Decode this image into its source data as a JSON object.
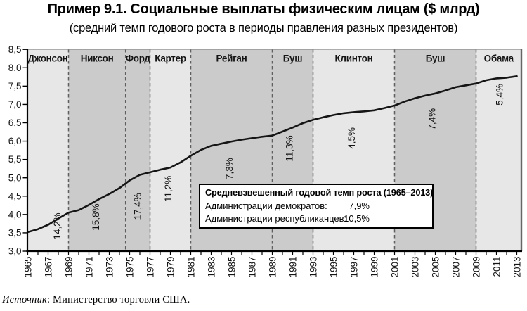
{
  "title": "Пример 9.1. Социальные выплаты физическим лицам ($ млрд)",
  "subtitle": "(средний темп годового роста в периоды правления разных президентов)",
  "source": {
    "label": "Источник",
    "text": ": Министерство торговли США."
  },
  "info_box": {
    "title": "Средневзвешенный годовой темп роста (1965–2013)",
    "rows": [
      {
        "label": "Администрации демократов:",
        "value": "7,9%"
      },
      {
        "label": "Администрации республиканцев:",
        "value": "10,5%"
      }
    ]
  },
  "chart_data": {
    "type": "line",
    "title": "Социальные выплаты физическим лицам ($ млрд)",
    "xlabel": "",
    "ylabel": "",
    "ylim": [
      3.0,
      8.5
    ],
    "ytick_step": 0.5,
    "yticks": [
      3.0,
      3.5,
      4.0,
      4.5,
      5.0,
      5.5,
      6.0,
      6.5,
      7.0,
      7.5,
      8.0,
      8.5
    ],
    "xticks_labeled": [
      1965,
      1967,
      1969,
      1971,
      1973,
      1975,
      1977,
      1979,
      1981,
      1983,
      1985,
      1987,
      1989,
      1991,
      1993,
      1995,
      1997,
      1999,
      2001,
      2003,
      2005,
      2007,
      2009,
      2011,
      2013
    ],
    "grid": false,
    "legend_position": "none",
    "x": [
      1965,
      1966,
      1967,
      1968,
      1969,
      1970,
      1971,
      1972,
      1973,
      1974,
      1975,
      1976,
      1977,
      1978,
      1979,
      1980,
      1981,
      1982,
      1983,
      1984,
      1985,
      1986,
      1987,
      1988,
      1989,
      1990,
      1991,
      1992,
      1993,
      1994,
      1995,
      1996,
      1997,
      1998,
      1999,
      2000,
      2001,
      2002,
      2003,
      2004,
      2005,
      2006,
      2007,
      2008,
      2009,
      2010,
      2011,
      2012,
      2013
    ],
    "values": [
      3.52,
      3.6,
      3.72,
      3.89,
      4.05,
      4.12,
      4.26,
      4.42,
      4.56,
      4.72,
      4.93,
      5.08,
      5.15,
      5.22,
      5.28,
      5.42,
      5.6,
      5.76,
      5.87,
      5.93,
      5.99,
      6.04,
      6.08,
      6.12,
      6.15,
      6.26,
      6.37,
      6.49,
      6.58,
      6.65,
      6.71,
      6.76,
      6.79,
      6.81,
      6.84,
      6.9,
      6.97,
      7.08,
      7.17,
      7.24,
      7.3,
      7.38,
      7.47,
      7.52,
      7.57,
      7.66,
      7.71,
      7.73,
      7.77
    ],
    "presidents": [
      {
        "name": "Джонсон",
        "party": "dem",
        "start": 1965,
        "end": 1969,
        "rate": "14,2%",
        "rate_year": 1967.9,
        "rate_value": 3.68
      },
      {
        "name": "Никсон",
        "party": "rep",
        "start": 1969,
        "end": 1974.6,
        "rate": "15,8%",
        "rate_year": 1971.7,
        "rate_value": 3.93
      },
      {
        "name": "Форд",
        "party": "rep",
        "start": 1974.6,
        "end": 1977,
        "rate": "17,4%",
        "rate_year": 1975.8,
        "rate_value": 4.22
      },
      {
        "name": "Картер",
        "party": "dem",
        "start": 1977,
        "end": 1981,
        "rate": "11,2%",
        "rate_year": 1978.8,
        "rate_value": 4.7
      },
      {
        "name": "Рейган",
        "party": "rep",
        "start": 1981,
        "end": 1989,
        "rate": "7,3%",
        "rate_year": 1984.8,
        "rate_value": 5.25
      },
      {
        "name": "Буш",
        "party": "rep",
        "start": 1989,
        "end": 1993,
        "rate": "11,3%",
        "rate_year": 1990.7,
        "rate_value": 5.8
      },
      {
        "name": "Клинтон",
        "party": "dem",
        "start": 1993,
        "end": 2001,
        "rate": "4,5%",
        "rate_year": 1996.8,
        "rate_value": 6.08
      },
      {
        "name": "Буш",
        "party": "rep",
        "start": 2001,
        "end": 2009,
        "rate": "7,4%",
        "rate_year": 2004.7,
        "rate_value": 6.6
      },
      {
        "name": "Обама",
        "party": "dem",
        "start": 2009,
        "end": 2013,
        "rate": "5,4%",
        "rate_year": 2011.3,
        "rate_value": 7.27
      }
    ],
    "weighted_average": {
      "period": "1965–2013",
      "democrats": "7,9%",
      "republicans": "10,5%"
    },
    "colors": {
      "dem_band": "#e7e7e7",
      "rep_band": "#cbcbcb",
      "line": "#151515",
      "divider": "#5f5f5f",
      "axis": "#000000",
      "frame_top": "#8a8a8a",
      "frame_right": "#666666"
    }
  }
}
